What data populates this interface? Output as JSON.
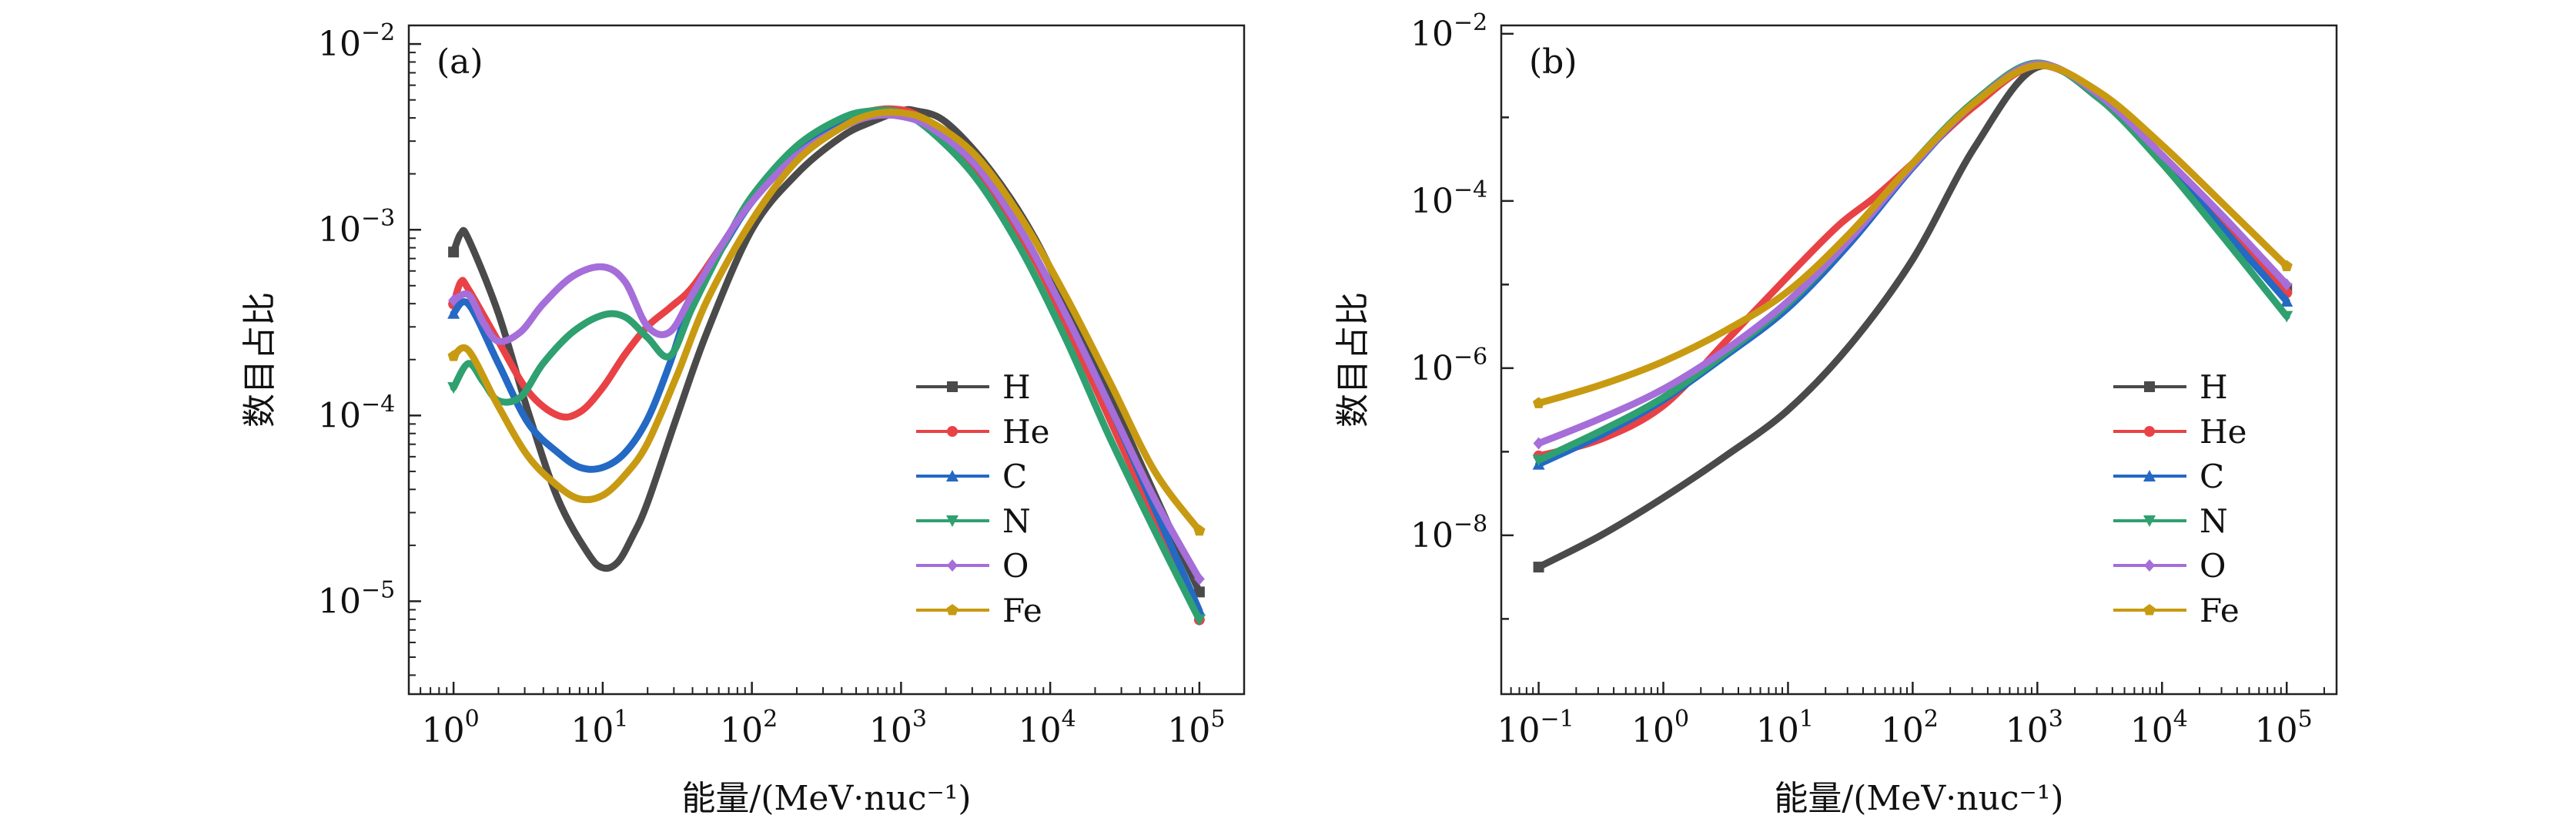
{
  "chart_data": [
    {
      "type": "line",
      "panel_label": "(a)",
      "xscale": "log",
      "yscale": "log",
      "xlabel": "能量/(MeV·nuc⁻¹)",
      "ylabel": "数目占比",
      "xlim_log10": [
        -0.3,
        5.3
      ],
      "ylim_log10": [
        -5.5,
        -1.9
      ],
      "x_ticks_log10": [
        0,
        1,
        2,
        3,
        4,
        5
      ],
      "y_ticks_log10": [
        -5,
        -4,
        -3,
        -2
      ],
      "legend_position": "center-right",
      "series": [
        {
          "name": "H",
          "color": "#4a4a4a",
          "marker": "square",
          "x_log10": [
            0,
            0.05,
            0.1,
            0.3,
            0.5,
            0.7,
            0.9,
            1.0,
            1.1,
            1.2,
            1.3,
            1.5,
            1.7,
            2.0,
            2.3,
            2.6,
            2.8,
            3.0,
            3.1,
            3.3,
            3.6,
            3.9,
            4.2,
            4.5,
            4.8,
            5.0
          ],
          "y_log10": [
            -3.12,
            -3.02,
            -3.05,
            -3.45,
            -3.98,
            -4.45,
            -4.74,
            -4.82,
            -4.79,
            -4.65,
            -4.47,
            -4.0,
            -3.55,
            -3.0,
            -2.7,
            -2.5,
            -2.42,
            -2.36,
            -2.36,
            -2.42,
            -2.68,
            -3.05,
            -3.55,
            -4.07,
            -4.6,
            -4.95
          ]
        },
        {
          "name": "He",
          "color": "#e84246",
          "marker": "circle",
          "x_log10": [
            0,
            0.05,
            0.1,
            0.3,
            0.5,
            0.7,
            0.85,
            1.0,
            1.15,
            1.3,
            1.45,
            1.6,
            1.8,
            2.0,
            2.3,
            2.6,
            2.8,
            2.95,
            3.1,
            3.3,
            3.6,
            3.9,
            4.2,
            4.5,
            4.8,
            5.0
          ],
          "y_log10": [
            -3.4,
            -3.28,
            -3.32,
            -3.6,
            -3.87,
            -4.0,
            -3.98,
            -3.85,
            -3.67,
            -3.52,
            -3.42,
            -3.31,
            -3.08,
            -2.85,
            -2.58,
            -2.41,
            -2.36,
            -2.35,
            -2.38,
            -2.5,
            -2.78,
            -3.17,
            -3.67,
            -4.2,
            -4.73,
            -5.1
          ]
        },
        {
          "name": "C",
          "color": "#2469c4",
          "marker": "triangle",
          "x_log10": [
            0,
            0.1,
            0.3,
            0.5,
            0.7,
            0.85,
            1.0,
            1.15,
            1.3,
            1.45,
            1.6,
            1.8,
            2.0,
            2.3,
            2.6,
            2.75,
            2.9,
            3.0,
            3.2,
            3.5,
            3.8,
            4.1,
            4.4,
            4.7,
            5.0
          ],
          "y_log10": [
            -3.45,
            -3.4,
            -3.72,
            -4.04,
            -4.2,
            -4.28,
            -4.28,
            -4.2,
            -4.02,
            -3.72,
            -3.37,
            -3.1,
            -2.85,
            -2.58,
            -2.41,
            -2.37,
            -2.36,
            -2.38,
            -2.45,
            -2.65,
            -3.0,
            -3.45,
            -3.95,
            -4.5,
            -5.05
          ]
        },
        {
          "name": "N",
          "color": "#2fa070",
          "marker": "triangle-down",
          "x_log10": [
            0,
            0.1,
            0.2,
            0.3,
            0.45,
            0.6,
            0.8,
            1.0,
            1.15,
            1.3,
            1.45,
            1.6,
            1.8,
            2.0,
            2.3,
            2.6,
            2.8,
            3.0,
            3.2,
            3.5,
            3.8,
            4.1,
            4.4,
            4.7,
            5.0
          ],
          "y_log10": [
            -3.85,
            -3.72,
            -3.82,
            -3.92,
            -3.9,
            -3.72,
            -3.55,
            -3.46,
            -3.47,
            -3.58,
            -3.68,
            -3.42,
            -3.1,
            -2.82,
            -2.55,
            -2.4,
            -2.36,
            -2.37,
            -2.47,
            -2.72,
            -3.1,
            -3.58,
            -4.12,
            -4.62,
            -5.1
          ]
        },
        {
          "name": "O",
          "color": "#a56ed9",
          "marker": "diamond",
          "x_log10": [
            0,
            0.1,
            0.2,
            0.3,
            0.45,
            0.6,
            0.8,
            1.0,
            1.15,
            1.3,
            1.45,
            1.6,
            1.8,
            2.0,
            2.3,
            2.6,
            2.8,
            3.0,
            3.2,
            3.5,
            3.8,
            4.1,
            4.4,
            4.7,
            5.0
          ],
          "y_log10": [
            -3.38,
            -3.35,
            -3.5,
            -3.6,
            -3.55,
            -3.4,
            -3.25,
            -3.2,
            -3.28,
            -3.52,
            -3.55,
            -3.35,
            -3.08,
            -2.85,
            -2.6,
            -2.45,
            -2.39,
            -2.39,
            -2.45,
            -2.65,
            -3.0,
            -3.45,
            -3.95,
            -4.45,
            -4.88
          ]
        },
        {
          "name": "Fe",
          "color": "#c89a12",
          "marker": "pentagon",
          "x_log10": [
            0,
            0.1,
            0.3,
            0.5,
            0.7,
            0.85,
            1.0,
            1.15,
            1.3,
            1.5,
            1.7,
            2.0,
            2.3,
            2.6,
            2.8,
            3.0,
            3.2,
            3.5,
            3.8,
            4.1,
            4.4,
            4.7,
            5.0
          ],
          "y_log10": [
            -3.68,
            -3.65,
            -3.95,
            -4.22,
            -4.38,
            -4.45,
            -4.43,
            -4.32,
            -4.15,
            -3.78,
            -3.38,
            -2.95,
            -2.63,
            -2.45,
            -2.38,
            -2.37,
            -2.42,
            -2.6,
            -2.93,
            -3.35,
            -3.82,
            -4.3,
            -4.62
          ]
        }
      ]
    },
    {
      "type": "line",
      "panel_label": "(b)",
      "xscale": "log",
      "yscale": "log",
      "xlabel": "能量/(MeV·nuc⁻¹)",
      "ylabel": "数目占比",
      "xlim_log10": [
        -1.3,
        5.4
      ],
      "ylim_log10": [
        -9.9,
        -1.9
      ],
      "x_ticks_log10": [
        -1,
        0,
        1,
        2,
        3,
        4,
        5
      ],
      "y_ticks_log10": [
        -8,
        -6,
        -4,
        -2
      ],
      "legend_position": "center-right",
      "series": [
        {
          "name": "H",
          "color": "#4a4a4a",
          "marker": "square",
          "x_log10": [
            -1,
            -0.5,
            0,
            0.5,
            1.0,
            1.5,
            2.0,
            2.5,
            3.0,
            3.5,
            4.0,
            4.5,
            5.0
          ],
          "y_log10": [
            -8.38,
            -8.0,
            -7.55,
            -7.05,
            -6.5,
            -5.72,
            -4.7,
            -3.35,
            -2.4,
            -2.78,
            -3.5,
            -4.3,
            -5.05
          ]
        },
        {
          "name": "He",
          "color": "#e84246",
          "marker": "circle",
          "x_log10": [
            -1,
            -0.5,
            0,
            0.5,
            1.0,
            1.4,
            1.7,
            2.0,
            2.5,
            3.0,
            3.5,
            4.0,
            4.5,
            5.0
          ],
          "y_log10": [
            -7.05,
            -6.85,
            -6.45,
            -5.68,
            -4.9,
            -4.3,
            -3.95,
            -3.55,
            -2.86,
            -2.38,
            -2.74,
            -3.48,
            -4.32,
            -5.1
          ]
        },
        {
          "name": "C",
          "color": "#2469c4",
          "marker": "triangle",
          "x_log10": [
            -1,
            -0.5,
            0,
            0.5,
            1.0,
            1.5,
            2.0,
            2.5,
            3.0,
            3.5,
            4.0,
            4.5,
            5.0
          ],
          "y_log10": [
            -7.15,
            -6.8,
            -6.38,
            -5.85,
            -5.28,
            -4.5,
            -3.6,
            -2.82,
            -2.36,
            -2.76,
            -3.5,
            -4.35,
            -5.2
          ]
        },
        {
          "name": "N",
          "color": "#2fa070",
          "marker": "triangle-down",
          "x_log10": [
            -1,
            -0.5,
            0,
            0.5,
            1.0,
            1.5,
            2.0,
            2.5,
            3.0,
            3.5,
            4.0,
            4.5,
            5.0
          ],
          "y_log10": [
            -7.1,
            -6.75,
            -6.35,
            -5.82,
            -5.23,
            -4.45,
            -3.55,
            -2.8,
            -2.35,
            -2.78,
            -3.55,
            -4.45,
            -5.38
          ]
        },
        {
          "name": "O",
          "color": "#a56ed9",
          "marker": "diamond",
          "x_log10": [
            -1,
            -0.5,
            0,
            0.5,
            1.0,
            1.5,
            2.0,
            2.5,
            3.0,
            3.5,
            4.0,
            4.5,
            5.0
          ],
          "y_log10": [
            -6.9,
            -6.6,
            -6.25,
            -5.78,
            -5.2,
            -4.45,
            -3.58,
            -2.82,
            -2.36,
            -2.74,
            -3.45,
            -4.2,
            -5.0
          ]
        },
        {
          "name": "Fe",
          "color": "#c89a12",
          "marker": "pentagon",
          "x_log10": [
            -1,
            -0.5,
            0,
            0.5,
            1.0,
            1.5,
            2.0,
            2.5,
            3.0,
            3.5,
            4.0,
            4.5,
            5.0
          ],
          "y_log10": [
            -6.42,
            -6.2,
            -5.92,
            -5.55,
            -5.08,
            -4.38,
            -3.55,
            -2.82,
            -2.38,
            -2.7,
            -3.33,
            -4.05,
            -4.78
          ]
        }
      ]
    }
  ]
}
